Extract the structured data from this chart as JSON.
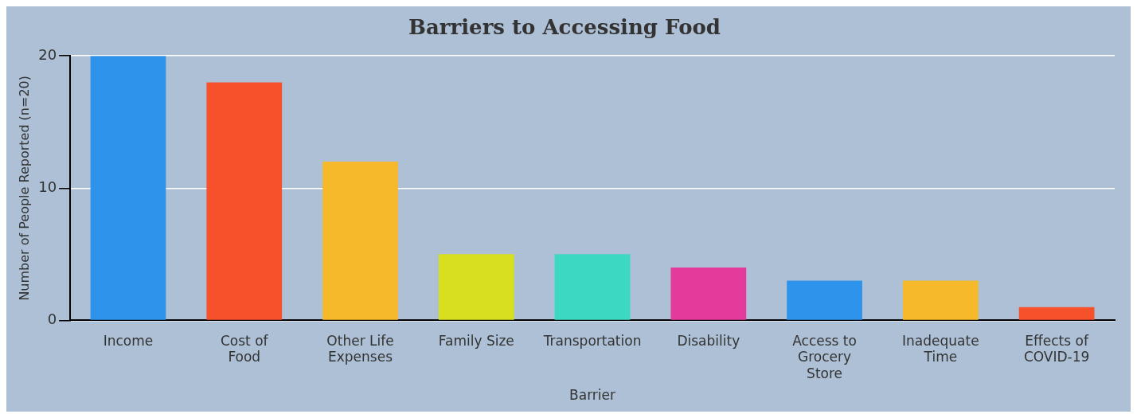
{
  "chart_data": {
    "type": "bar",
    "title": "Barriers to Accessing Food",
    "xlabel": "Barrier",
    "ylabel": "Number of People Reported (n=20)",
    "categories": [
      "Income",
      "Cost of Food",
      "Other Life Expenses",
      "Family Size",
      "Transportation",
      "Disability",
      "Access to Grocery Store",
      "Inadequate Time",
      "Effects of COVID-19"
    ],
    "values": [
      20,
      18,
      12,
      5,
      5,
      4,
      3,
      3,
      1
    ],
    "colors": [
      "#2e93ea",
      "#f7512b",
      "#f6b92b",
      "#d7df1e",
      "#3cd9c2",
      "#e43a9b",
      "#2e93ea",
      "#f6b92b",
      "#f7512b"
    ],
    "ylim": [
      0,
      20
    ],
    "yticks": [
      0,
      10,
      20
    ],
    "grid": "y",
    "legend": false
  }
}
